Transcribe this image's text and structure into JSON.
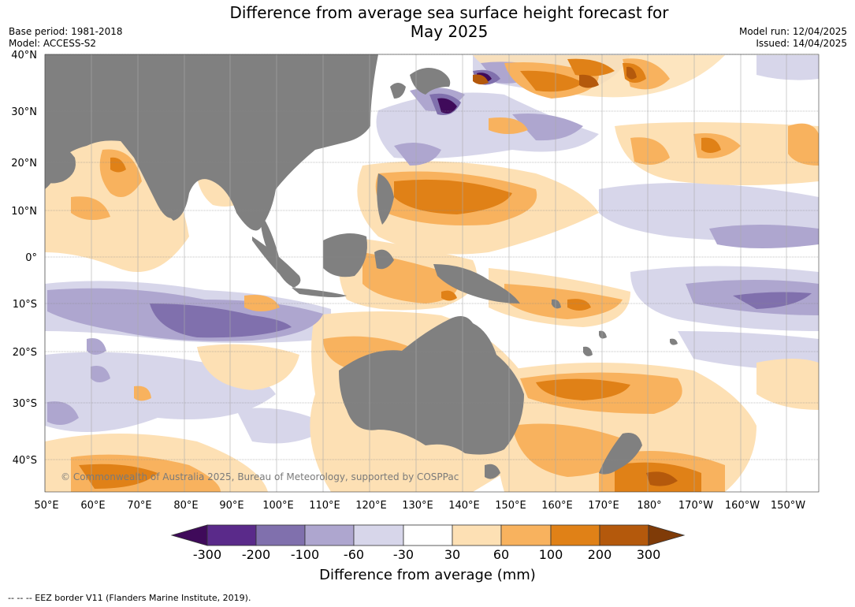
{
  "title_line1": "Difference from average sea surface height forecast for",
  "title_line2": "May 2025",
  "base_period": "Base period: 1981-2018",
  "model": "Model: ACCESS-S2",
  "model_run": "Model run: 12/04/2025",
  "issued": "Issued: 14/04/2025",
  "copyright": "© Commonwealth of Australia 2025, Bureau of Meteorology, supported by COSPPac",
  "footer": "-- -- -- EEZ border V11 (Flanders Marine Institute, 2019).",
  "lat_labels": [
    "40°N",
    "30°N",
    "20°N",
    "10°N",
    "0°",
    "10°S",
    "20°S",
    "30°S",
    "40°S"
  ],
  "lon_labels": [
    "50°E",
    "60°E",
    "70°E",
    "80°E",
    "90°E",
    "100°E",
    "110°E",
    "120°E",
    "130°E",
    "140°E",
    "150°E",
    "160°E",
    "170°E",
    "180°",
    "170°W",
    "160°W",
    "150°W"
  ],
  "colorbar": {
    "title": "Difference from average (mm)",
    "ticks": [
      "-300",
      "-200",
      "-100",
      "-60",
      "-30",
      "30",
      "60",
      "100",
      "200",
      "300"
    ],
    "colors": [
      "#3f0a5a",
      "#5a2a8a",
      "#8070ad",
      "#aea6cf",
      "#d7d6ea",
      "#ffffff",
      "#fde0b4",
      "#f8b25e",
      "#e08117",
      "#b4590c",
      "#7f3b08"
    ]
  },
  "colors": {
    "land": "#808080",
    "neg_light": "#d7d6ea",
    "neg_mid": "#aea6cf",
    "neg_strong": "#8070ad",
    "neg_extreme": "#5a2a8a",
    "pos_light": "#fde0b4",
    "pos_mid": "#f8b25e",
    "pos_strong": "#e08117",
    "pos_extreme": "#b4590c"
  }
}
